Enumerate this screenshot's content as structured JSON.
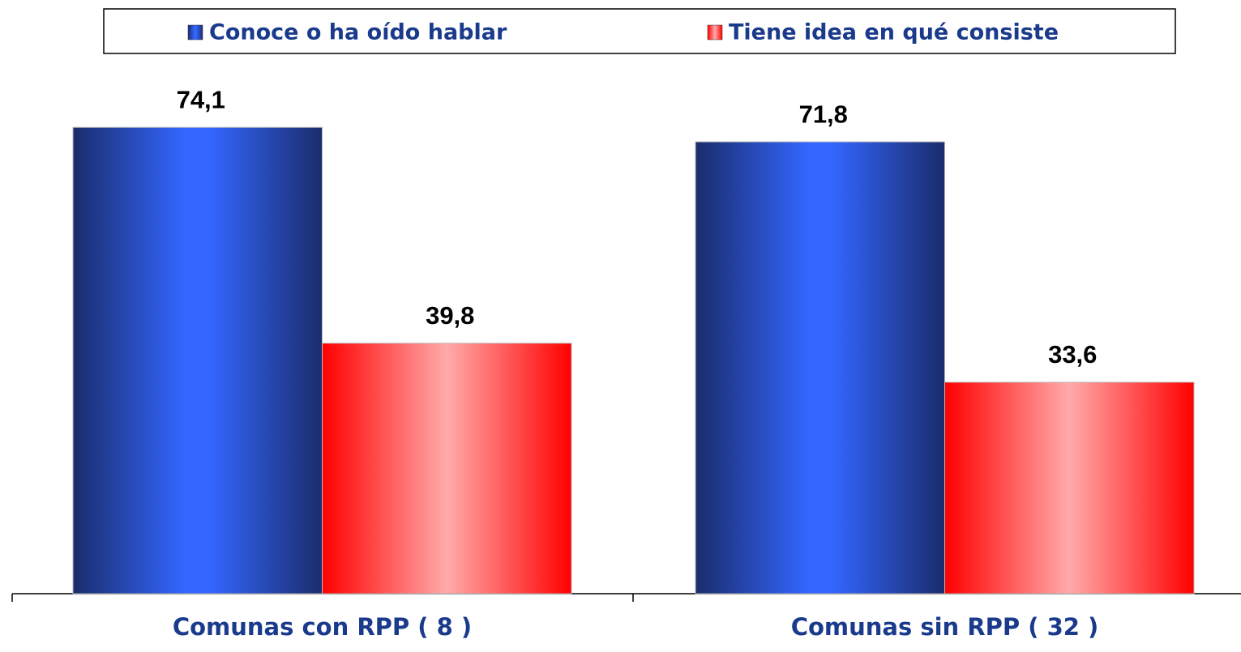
{
  "chart_data": {
    "type": "bar",
    "categories": [
      "Comunas con RPP ( 8 )",
      "Comunas sin RPP ( 32 )"
    ],
    "series": [
      {
        "name": "Conoce o ha oído hablar",
        "color": "#3366ff",
        "values": [
          74.1,
          71.8
        ],
        "value_labels": [
          "74,1",
          "71,8"
        ]
      },
      {
        "name": "Tiene idea en qué consiste",
        "color": "#ff0000",
        "values": [
          39.8,
          33.6
        ],
        "value_labels": [
          "39,8",
          "33,6"
        ]
      }
    ],
    "legend": "top"
  }
}
